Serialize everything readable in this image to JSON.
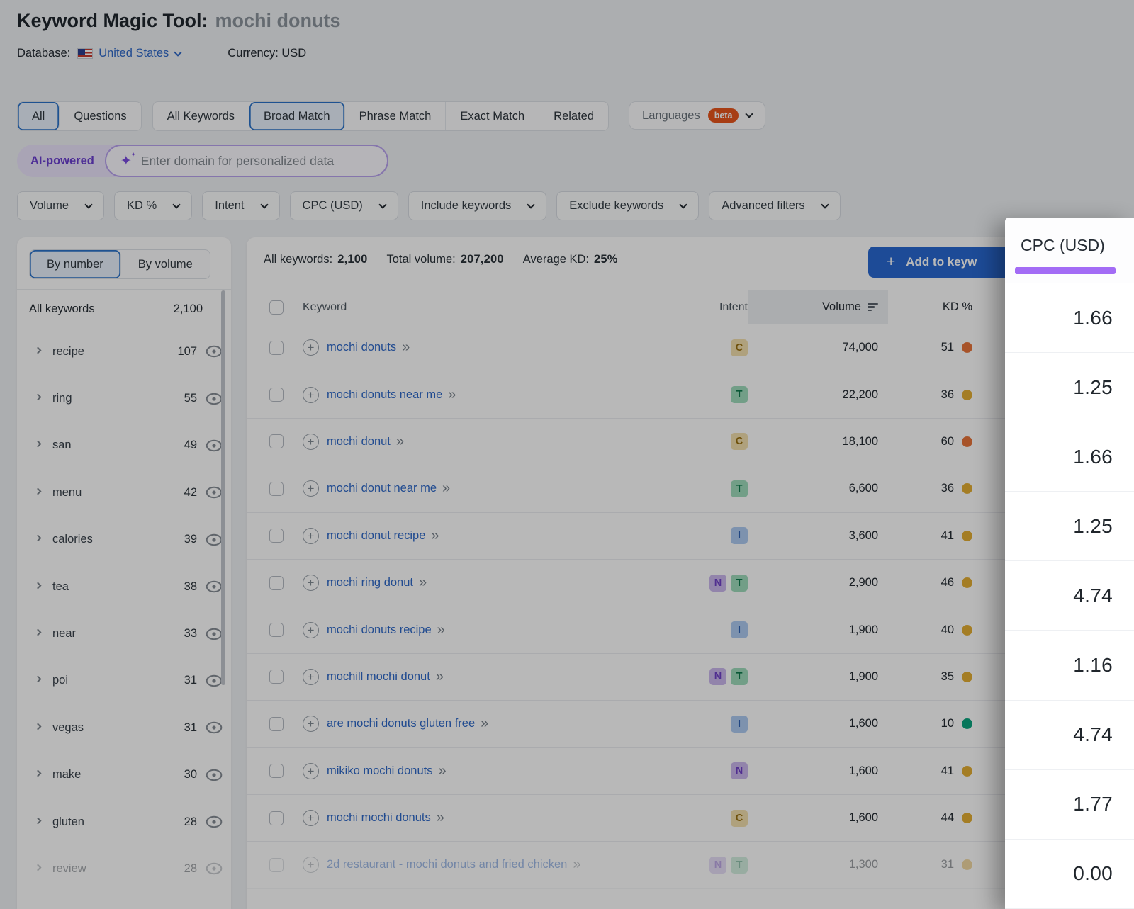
{
  "header": {
    "title": "Keyword Magic Tool:",
    "query": "mochi donuts",
    "database_label": "Database:",
    "database_value": "United States",
    "currency": "Currency: USD"
  },
  "tabs": {
    "group1": [
      "All",
      "Questions"
    ],
    "group1_selected": "All",
    "group2": [
      "All Keywords",
      "Broad Match",
      "Phrase Match",
      "Exact Match",
      "Related"
    ],
    "group2_selected": "Broad Match",
    "languages": {
      "label": "Languages",
      "badge": "beta"
    }
  },
  "ai": {
    "badge": "AI-powered",
    "placeholder": "Enter domain for personalized data"
  },
  "filters": [
    "Volume",
    "KD %",
    "Intent",
    "CPC (USD)",
    "Include keywords",
    "Exclude keywords",
    "Advanced filters"
  ],
  "sidebar": {
    "toggle": [
      "By number",
      "By volume"
    ],
    "toggle_selected": "By number",
    "all_keywords_label": "All keywords",
    "all_keywords_count": "2,100",
    "groups": [
      {
        "label": "recipe",
        "count": "107",
        "faded": false
      },
      {
        "label": "ring",
        "count": "55",
        "faded": false
      },
      {
        "label": "san",
        "count": "49",
        "faded": false
      },
      {
        "label": "menu",
        "count": "42",
        "faded": false
      },
      {
        "label": "calories",
        "count": "39",
        "faded": false
      },
      {
        "label": "tea",
        "count": "38",
        "faded": false
      },
      {
        "label": "near",
        "count": "33",
        "faded": false
      },
      {
        "label": "poi",
        "count": "31",
        "faded": false
      },
      {
        "label": "vegas",
        "count": "31",
        "faded": false
      },
      {
        "label": "make",
        "count": "30",
        "faded": false
      },
      {
        "label": "gluten",
        "count": "28",
        "faded": false
      },
      {
        "label": "review",
        "count": "28",
        "faded": true
      }
    ]
  },
  "table": {
    "summary": [
      {
        "label": "All keywords:",
        "value": "2,100"
      },
      {
        "label": "Total volume:",
        "value": "207,200"
      },
      {
        "label": "Average KD:",
        "value": "25%"
      }
    ],
    "add_button_label": "Add to keyw",
    "columns": {
      "keyword": "Keyword",
      "intent": "Intent",
      "volume": "Volume",
      "kd": "KD %"
    },
    "rows": [
      {
        "keyword": "mochi donuts",
        "intents": [
          "C"
        ],
        "volume": "74,000",
        "kd": "51",
        "kd_level": "orange",
        "faded": false
      },
      {
        "keyword": "mochi donuts near me",
        "intents": [
          "T"
        ],
        "volume": "22,200",
        "kd": "36",
        "kd_level": "yellow",
        "faded": false
      },
      {
        "keyword": "mochi donut",
        "intents": [
          "C"
        ],
        "volume": "18,100",
        "kd": "60",
        "kd_level": "orange",
        "faded": false
      },
      {
        "keyword": "mochi donut near me",
        "intents": [
          "T"
        ],
        "volume": "6,600",
        "kd": "36",
        "kd_level": "yellow",
        "faded": false
      },
      {
        "keyword": "mochi donut recipe",
        "intents": [
          "I"
        ],
        "volume": "3,600",
        "kd": "41",
        "kd_level": "yellow",
        "faded": false
      },
      {
        "keyword": "mochi ring donut",
        "intents": [
          "N",
          "T"
        ],
        "volume": "2,900",
        "kd": "46",
        "kd_level": "yellow",
        "faded": false
      },
      {
        "keyword": "mochi donuts recipe",
        "intents": [
          "I"
        ],
        "volume": "1,900",
        "kd": "40",
        "kd_level": "yellow",
        "faded": false
      },
      {
        "keyword": "mochill mochi donut",
        "intents": [
          "N",
          "T"
        ],
        "volume": "1,900",
        "kd": "35",
        "kd_level": "yellow",
        "faded": false
      },
      {
        "keyword": "are mochi donuts gluten free",
        "intents": [
          "I"
        ],
        "volume": "1,600",
        "kd": "10",
        "kd_level": "green",
        "faded": false
      },
      {
        "keyword": "mikiko mochi donuts",
        "intents": [
          "N"
        ],
        "volume": "1,600",
        "kd": "41",
        "kd_level": "yellow",
        "faded": false
      },
      {
        "keyword": "mochi mochi donuts",
        "intents": [
          "C"
        ],
        "volume": "1,600",
        "kd": "44",
        "kd_level": "yellow",
        "faded": false
      },
      {
        "keyword": "2d restaurant - mochi donuts and fried chicken",
        "intents": [
          "N",
          "T"
        ],
        "volume": "1,300",
        "kd": "31",
        "kd_level": "yellow",
        "faded": true
      }
    ]
  },
  "cpc": {
    "header": "CPC (USD)",
    "values": [
      "1.66",
      "1.25",
      "1.66",
      "1.25",
      "4.74",
      "1.16",
      "4.74",
      "1.77",
      "0.00"
    ]
  },
  "icons": {
    "plus": "+",
    "double_arrow": "»",
    "sparkle": "✦"
  },
  "colors": {
    "accent_blue": "#2a72c9",
    "button_blue": "#2969d2",
    "cpc_accent": "#a36cf5",
    "kd_levels": {
      "orange": "#e8743a",
      "yellow": "#e3ad33",
      "green": "#0ba47e"
    },
    "intent": {
      "C": {
        "bg": "#f3dfae",
        "fg": "#9a7110"
      },
      "T": {
        "bg": "#9fdcbc",
        "fg": "#0f7a4d"
      },
      "N": {
        "bg": "#cbb8ee",
        "fg": "#7040c8"
      },
      "I": {
        "bg": "#aecbf2",
        "fg": "#2f62b4"
      }
    }
  }
}
